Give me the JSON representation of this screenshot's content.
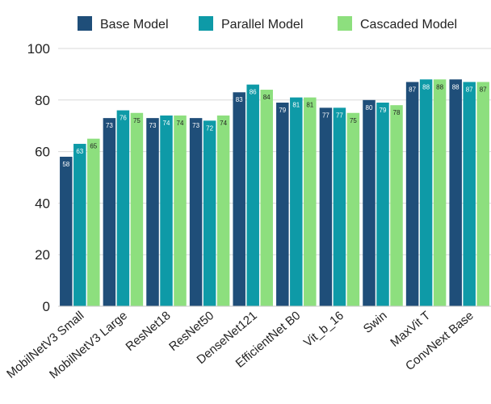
{
  "chart_data": {
    "type": "bar",
    "title": "",
    "xlabel": "",
    "ylabel": "",
    "ylim": [
      0,
      100
    ],
    "yticks": [
      0,
      20,
      40,
      60,
      80,
      100
    ],
    "grid": "horizontal",
    "legend_position": "top",
    "categories": [
      "MobilNetV3 Small",
      "MobilNetV3 Large",
      "ResNet18",
      "ResNet50",
      "DenseNet121",
      "EfficientNet B0",
      "Vit_b_16",
      "Swin",
      "MaxVit T",
      "ConvNext Base"
    ],
    "series": [
      {
        "name": "Base Model",
        "color": "#1f4e79",
        "label_color": "#ffffff",
        "values": [
          58,
          73,
          73,
          73,
          83,
          79,
          77,
          80,
          87,
          88
        ]
      },
      {
        "name": "Parallel Model",
        "color": "#0e9aa7",
        "label_color": "#ffffff",
        "values": [
          63,
          76,
          74,
          72,
          86,
          81,
          77,
          79,
          88,
          87
        ]
      },
      {
        "name": "Cascaded Model",
        "color": "#8ddf7e",
        "label_color": "#222222",
        "values": [
          65,
          75,
          74,
          74,
          84,
          81,
          75,
          78,
          88,
          87
        ]
      }
    ]
  }
}
